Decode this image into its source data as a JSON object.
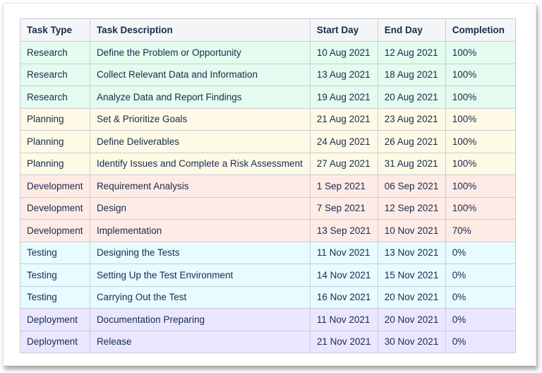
{
  "colors": {
    "Research": "#e3fcef",
    "Planning": "#fffae6",
    "Development": "#ffebe6",
    "Testing": "#e6fcff",
    "Deployment": "#eae6ff",
    "header": "#f4f5f7"
  },
  "headers": [
    "Task Type",
    "Task Description",
    "Start Day",
    "End Day",
    "Completion"
  ],
  "rows": [
    [
      "Research",
      "Define the Problem or Opportunity",
      "10 Aug 2021",
      "12 Aug 2021",
      "100%"
    ],
    [
      "Research",
      "Collect Relevant Data and Information",
      "13 Aug 2021",
      "18 Aug 2021",
      "100%"
    ],
    [
      "Research",
      "Analyze Data and Report Findings",
      "19 Aug 2021",
      "20 Aug 2021",
      "100%"
    ],
    [
      "Planning",
      "Set & Prioritize Goals",
      "21 Aug 2021",
      "23 Aug 2021",
      "100%"
    ],
    [
      "Planning",
      "Define Deliverables",
      "24 Aug 2021",
      "26 Aug 2021",
      "100%"
    ],
    [
      "Planning",
      "Identify Issues and Complete a Risk Assessment",
      "27 Aug 2021",
      "31 Aug 2021",
      "100%"
    ],
    [
      "Development",
      "Requirement Analysis",
      "1 Sep 2021",
      "06 Sep 2021",
      "100%"
    ],
    [
      "Development",
      "Design",
      "7 Sep 2021",
      "12 Sep 2021",
      "100%"
    ],
    [
      "Development",
      "Implementation",
      "13 Sep 2021",
      "10 Nov 2021",
      "70%"
    ],
    [
      "Testing",
      "Designing the Tests",
      "11 Nov 2021",
      "13 Nov 2021",
      "0%"
    ],
    [
      "Testing",
      "Setting Up the Test Environment",
      "14 Nov 2021",
      "15 Nov 2021",
      "0%"
    ],
    [
      "Testing",
      "Carrying Out the Test",
      "16 Nov 2021",
      "20 Nov 2021",
      "0%"
    ],
    [
      "Deployment",
      "Documentation Preparing",
      "11 Nov 2021",
      "20 Nov 2021",
      "0%"
    ],
    [
      "Deployment",
      "Release",
      "21 Nov 2021",
      "30 Nov 2021",
      "0%"
    ]
  ]
}
